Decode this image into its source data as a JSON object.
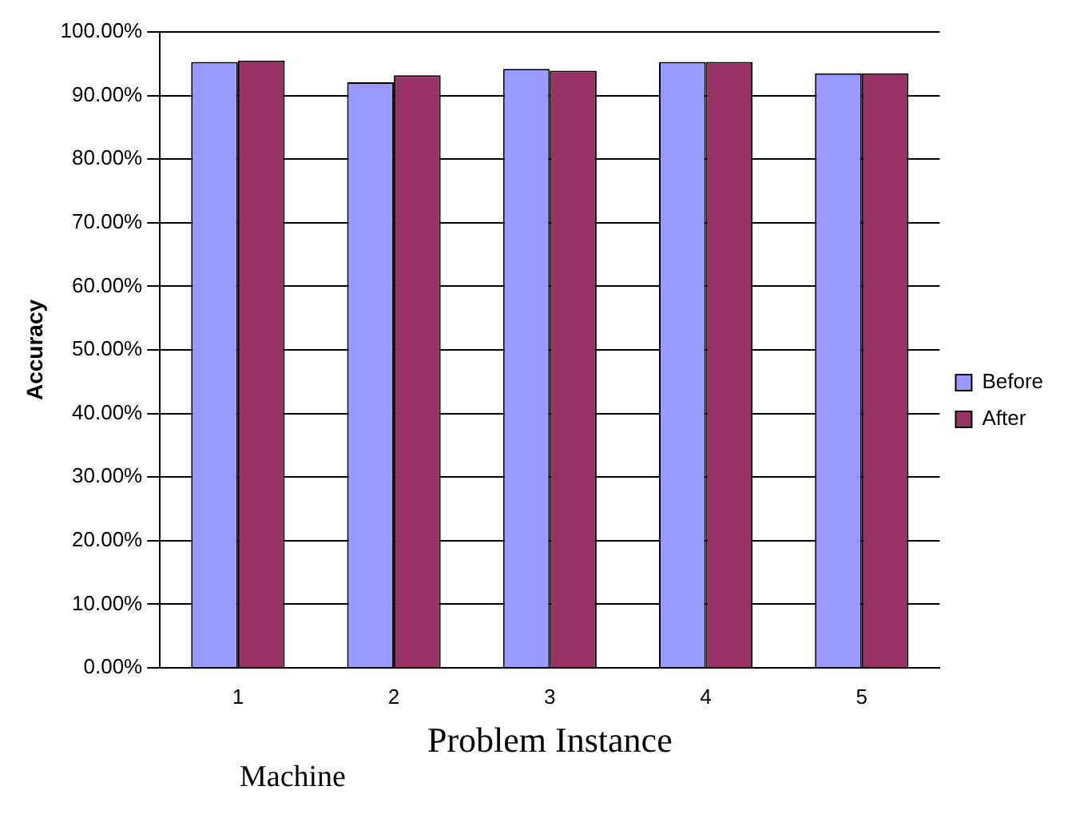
{
  "chart_data": {
    "type": "bar",
    "xlabel": "Problem Instance",
    "ylabel": "Accuracy",
    "annotations": [
      "Machine"
    ],
    "categories": [
      "1",
      "2",
      "3",
      "4",
      "5"
    ],
    "series": [
      {
        "name": "Before",
        "color": "#9999ff",
        "values": [
          95.3,
          92.1,
          94.2,
          95.3,
          93.5
        ]
      },
      {
        "name": "After",
        "color": "#993366",
        "values": [
          95.5,
          93.2,
          93.9,
          95.3,
          93.5
        ]
      }
    ],
    "ylim": [
      0,
      100
    ],
    "yticks": [
      {
        "value": 0,
        "label": "0.00%"
      },
      {
        "value": 10,
        "label": "10.00%"
      },
      {
        "value": 20,
        "label": "20.00%"
      },
      {
        "value": 30,
        "label": "30.00%"
      },
      {
        "value": 40,
        "label": "40.00%"
      },
      {
        "value": 50,
        "label": "50.00%"
      },
      {
        "value": 60,
        "label": "60.00%"
      },
      {
        "value": 70,
        "label": "70.00%"
      },
      {
        "value": 80,
        "label": "80.00%"
      },
      {
        "value": 90,
        "label": "90.00%"
      },
      {
        "value": 100,
        "label": "100.00%"
      }
    ],
    "grid": "y",
    "legend": "right"
  }
}
